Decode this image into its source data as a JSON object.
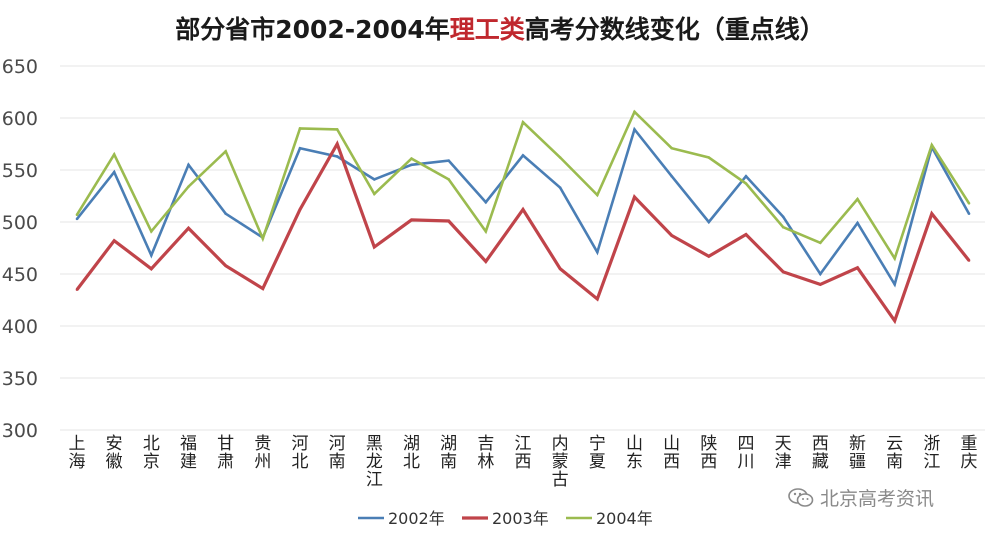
{
  "title": {
    "prefix": "部分省市2002-2004年",
    "highlight": "理工类",
    "suffix": "高考分数线变化（重点线）",
    "highlight_color": "#c0282e"
  },
  "watermark": {
    "text": "北京高考资讯",
    "icon": "wechat-icon"
  },
  "chart_data": {
    "type": "line",
    "title": "部分省市2002-2004年理工类高考分数线变化（重点线）",
    "xlabel": "",
    "ylabel": "",
    "ylim": [
      300,
      650
    ],
    "yticks": [
      300,
      350,
      400,
      450,
      500,
      550,
      600,
      650
    ],
    "grid": true,
    "legend_position": "bottom-center",
    "categories": [
      "上海",
      "安徽",
      "北京",
      "福建",
      "甘肃",
      "贵州",
      "河北",
      "河南",
      "黑龙江",
      "湖北",
      "湖南",
      "吉林",
      "江西",
      "内蒙古",
      "宁夏",
      "山东",
      "山西",
      "陕西",
      "四川",
      "天津",
      "西藏",
      "新疆",
      "云南",
      "浙江",
      "重庆"
    ],
    "series": [
      {
        "name": "2002年",
        "color": "#4a7eb5",
        "values": [
          503,
          548,
          468,
          555,
          508,
          485,
          571,
          563,
          541,
          555,
          559,
          519,
          564,
          533,
          471,
          589,
          544,
          500,
          544,
          505,
          450,
          499,
          440,
          572,
          508
        ]
      },
      {
        "name": "2003年",
        "color": "#c0444a",
        "values": [
          435,
          482,
          455,
          494,
          458,
          436,
          512,
          575,
          476,
          502,
          501,
          462,
          512,
          455,
          426,
          524,
          487,
          467,
          488,
          452,
          440,
          456,
          405,
          508,
          463
        ]
      },
      {
        "name": "2004年",
        "color": "#9bbb4f",
        "values": [
          507,
          565,
          491,
          534,
          568,
          484,
          590,
          589,
          527,
          561,
          541,
          491,
          596,
          562,
          526,
          606,
          571,
          562,
          537,
          495,
          480,
          522,
          465,
          574,
          518
        ]
      }
    ]
  }
}
